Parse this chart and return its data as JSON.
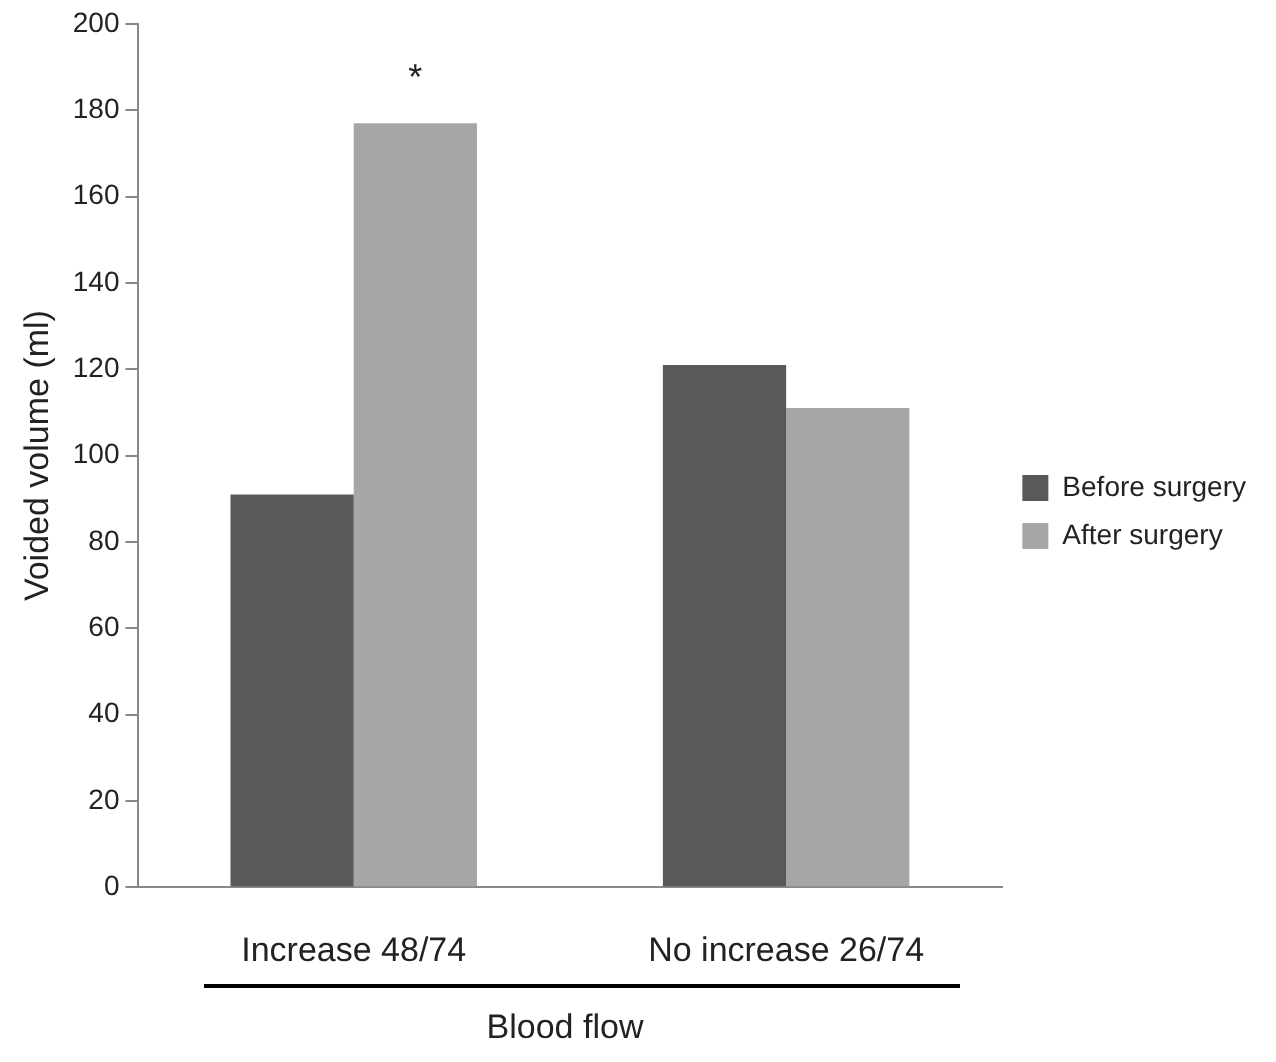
{
  "chart_data": {
    "type": "bar",
    "xlabel": "Blood flow",
    "ylabel": "Voided volume (ml)",
    "categories": [
      "Increase 48/74",
      "No increase 26/74"
    ],
    "series": [
      {
        "name": "Before surgery",
        "color": "#595959",
        "values": [
          91,
          121
        ]
      },
      {
        "name": "After surgery",
        "color": "#a6a6a6",
        "values": [
          177,
          111
        ]
      }
    ],
    "ylim": [
      0,
      200
    ],
    "yticks": [
      0,
      20,
      40,
      60,
      80,
      100,
      120,
      140,
      160,
      180,
      200
    ],
    "grid": false,
    "legend": "right",
    "annotations": [
      "*"
    ]
  }
}
